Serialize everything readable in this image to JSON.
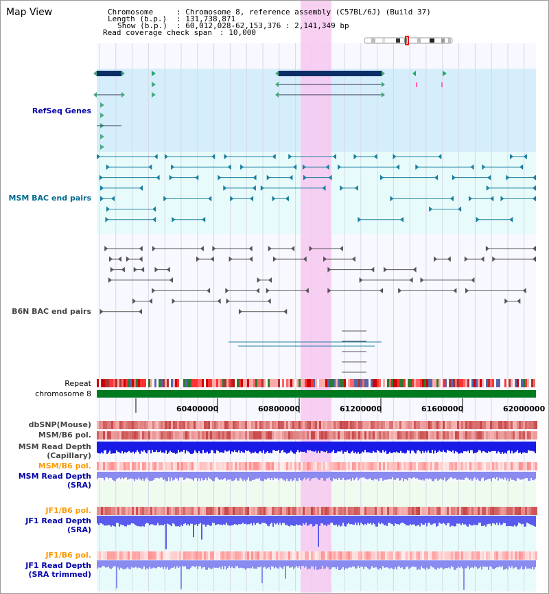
{
  "app": {
    "title": "Map View"
  },
  "info": {
    "chromosome_key": "Chromosome",
    "chromosome_val": ": Chromosome 8, reference assembly (C57BL/6J) (Build 37)",
    "length_key": "Length (b.p.)",
    "length_val": ": 131,738,871",
    "show_key": "Show (b.p.)",
    "show_val": ": 60,012,028-62,153,376 : 2,141,349 bp",
    "coverage_key": "Read coverage check span",
    "coverage_val": ": 10,000"
  },
  "tracks": {
    "refseq": "RefSeq Genes",
    "msm_bac": "MSM BAC end pairs",
    "b6n_bac": "B6N BAC end pairs",
    "repeat": "Repeat",
    "chromosome": "chromosome 8",
    "dbsnp": "dbSNP(Mouse)",
    "msm_b6_pol": "MSM/B6 pol.",
    "msm_depth_cap_1": "MSM Read Depth",
    "msm_depth_cap_2": "(Capillary)",
    "msm_b6_pol2": "MSM/B6 pol.",
    "msm_depth_sra_1": "MSM Read Depth",
    "msm_depth_sra_2": "(SRA)",
    "jf1_b6_pol": "JF1/B6 pol.",
    "jf1_depth_sra_1": "JF1 Read Depth",
    "jf1_depth_sra_2": "(SRA)",
    "jf1_b6_pol2": "JF1/B6 pol.",
    "jf1_depth_trim_1": "JF1 Read Depth",
    "jf1_depth_trim_2": "(SRA trimmed)"
  },
  "axis": {
    "ticks": [
      "60400000",
      "60800000",
      "61200000",
      "61600000",
      "62000000"
    ]
  },
  "colors": {
    "refseq_text": "#0000aa",
    "msm_text": "#006b8f",
    "b6n_text": "#444444",
    "gene_fill": "#0b2e66",
    "highlight": "#f7c8f0",
    "msm_pol_text": "#ff9900",
    "depth_blue": "#1a1ae6",
    "chrom_green": "#007a1f"
  }
}
